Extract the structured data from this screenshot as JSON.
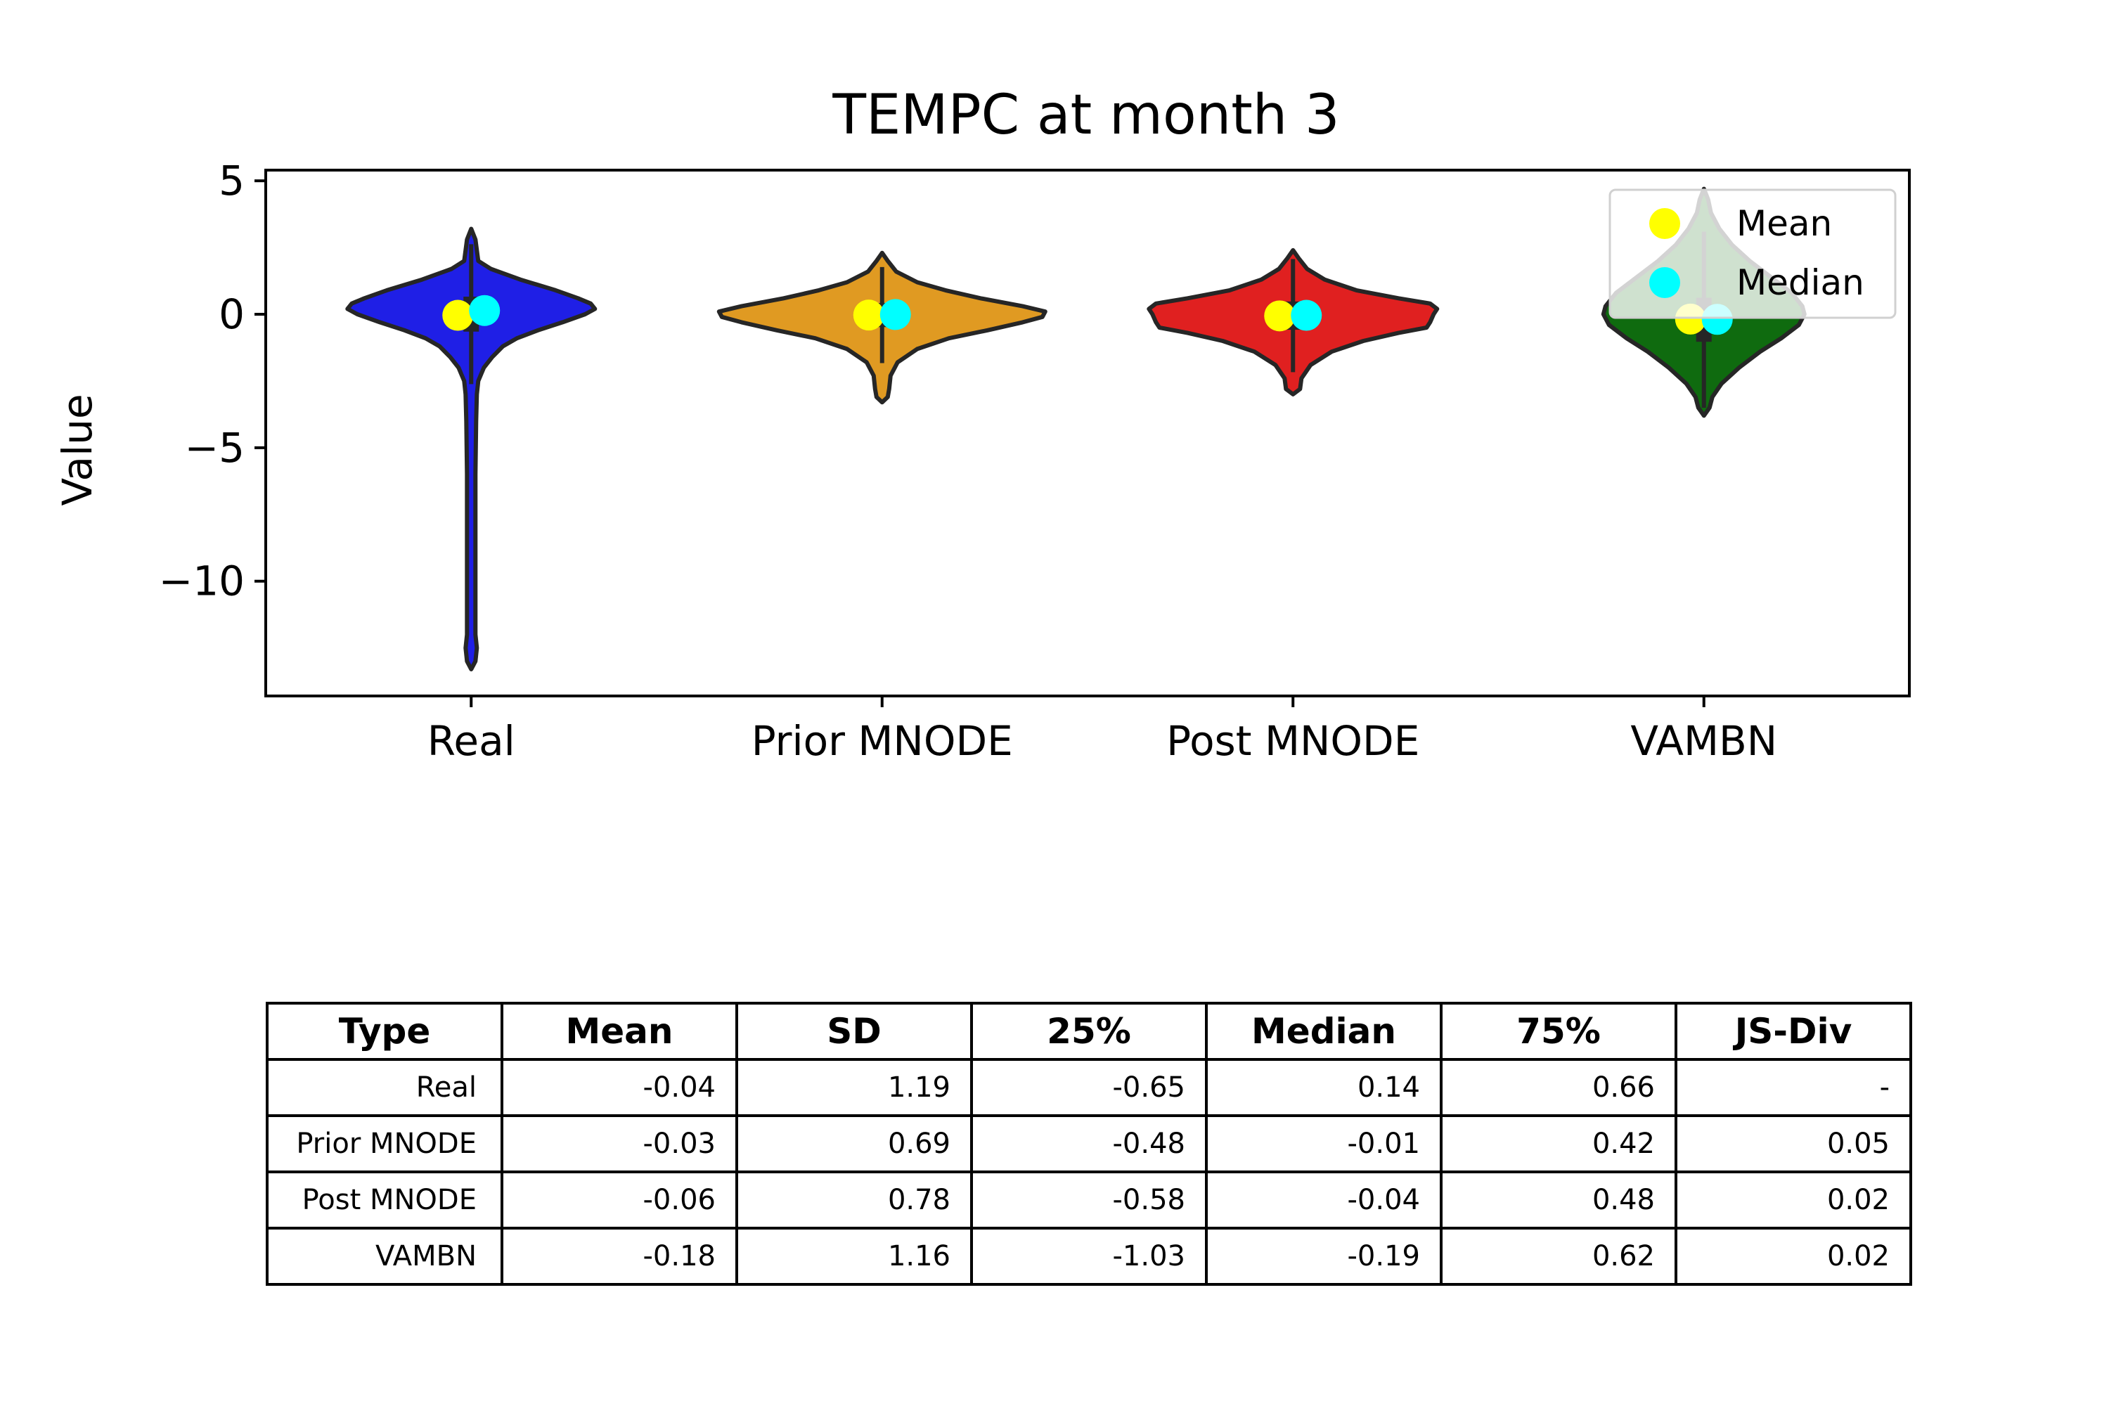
{
  "chart_data": {
    "type": "violin",
    "title": "TEMPC at month 3",
    "xlabel": "",
    "ylabel": "Value",
    "ylim": [
      -14.3,
      5.4
    ],
    "yticks": [
      5,
      0,
      -5,
      -10
    ],
    "ytick_labels": [
      "5",
      "0",
      "−5",
      "−10"
    ],
    "categories": [
      "Real",
      "Prior MNODE",
      "Post MNODE",
      "VAMBN"
    ],
    "colors": [
      "#1f1fe6",
      "#e09a22",
      "#e02020",
      "#0f6b0f"
    ],
    "series": [
      {
        "category": "Real",
        "min": -13.3,
        "max": 3.2,
        "q1": -0.65,
        "median": 0.14,
        "q3": 0.66,
        "mean": -0.04
      },
      {
        "category": "Prior MNODE",
        "min": -3.3,
        "max": 2.3,
        "q1": -0.48,
        "median": -0.01,
        "q3": 0.42,
        "mean": -0.03
      },
      {
        "category": "Post MNODE",
        "min": -3.0,
        "max": 2.4,
        "q1": -0.58,
        "median": -0.04,
        "q3": 0.48,
        "mean": -0.06
      },
      {
        "category": "VAMBN",
        "min": -3.8,
        "max": 4.7,
        "q1": -1.03,
        "median": -0.19,
        "q3": 0.62,
        "mean": -0.18
      }
    ],
    "legend": {
      "position": "top-right",
      "entries": [
        {
          "label": "Mean",
          "color": "#ffff00"
        },
        {
          "label": "Median",
          "color": "#00ffff"
        }
      ]
    },
    "grid": false
  },
  "table": {
    "headers": [
      "Type",
      "Mean",
      "SD",
      "25%",
      "Median",
      "75%",
      "JS-Div"
    ],
    "rows": [
      [
        "Real",
        "-0.04",
        "1.19",
        "-0.65",
        "0.14",
        "0.66",
        "-"
      ],
      [
        "Prior MNODE",
        "-0.03",
        "0.69",
        "-0.48",
        "-0.01",
        "0.42",
        "0.05"
      ],
      [
        "Post MNODE",
        "-0.06",
        "0.78",
        "-0.58",
        "-0.04",
        "0.48",
        "0.02"
      ],
      [
        "VAMBN",
        "-0.18",
        "1.16",
        "-1.03",
        "-0.19",
        "0.62",
        "0.02"
      ]
    ]
  }
}
